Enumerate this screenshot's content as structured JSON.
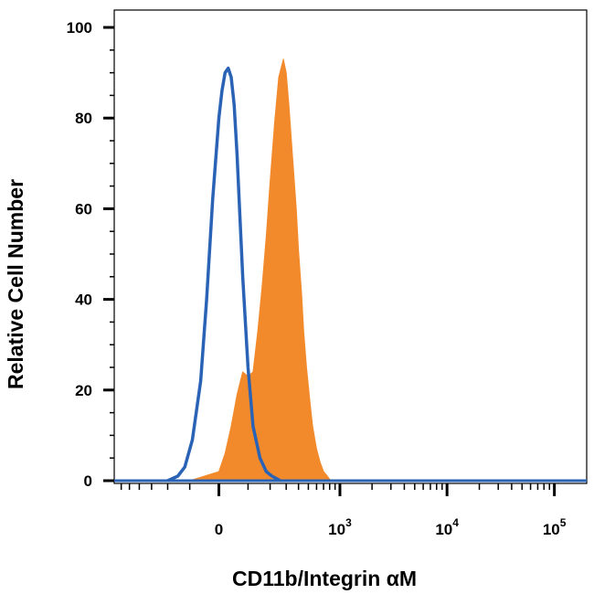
{
  "chart_data": {
    "type": "area",
    "title": "",
    "xlabel": "CD11b/Integrin αM",
    "ylabel": "Relative Cell Number",
    "x_scale": "biexponential",
    "xlim": [
      -700,
      200000
    ],
    "ylim": [
      0,
      100
    ],
    "y_ticks": [
      "0",
      "20",
      "40",
      "60",
      "80",
      "100"
    ],
    "x_ticks": [
      {
        "value": 0,
        "base": "0",
        "exp": ""
      },
      {
        "value": 1000,
        "base": "10",
        "exp": "3"
      },
      {
        "value": 10000,
        "base": "10",
        "exp": "4"
      },
      {
        "value": 100000,
        "base": "10",
        "exp": "5"
      }
    ],
    "grid": false,
    "series": [
      {
        "style": "filled",
        "color": "#f28a2c",
        "x": [
          -100,
          0,
          20,
          40,
          60,
          80,
          100,
          120,
          140,
          160,
          180,
          200,
          225,
          250,
          280,
          300,
          320,
          350,
          380,
          400,
          430,
          450,
          480,
          520,
          550,
          600,
          650,
          700,
          760,
          820,
          880
        ],
        "y": [
          0,
          2,
          6,
          12,
          19,
          24,
          23,
          24,
          33,
          43,
          54,
          66,
          79,
          89,
          93,
          90,
          83,
          71,
          60,
          51,
          41,
          33,
          25,
          17,
          12,
          7,
          4,
          2,
          1,
          0,
          0
        ]
      },
      {
        "style": "outline",
        "color": "#2a63b5",
        "x": [
          -200,
          -150,
          -120,
          -90,
          -60,
          -40,
          -20,
          0,
          10,
          20,
          30,
          40,
          50,
          60,
          70,
          80,
          100,
          120,
          150,
          180,
          210,
          260
        ],
        "y": [
          0,
          1,
          3,
          9,
          22,
          40,
          62,
          80,
          86,
          90,
          91,
          89,
          83,
          72,
          58,
          45,
          25,
          12,
          5,
          2,
          1,
          0
        ]
      }
    ]
  }
}
